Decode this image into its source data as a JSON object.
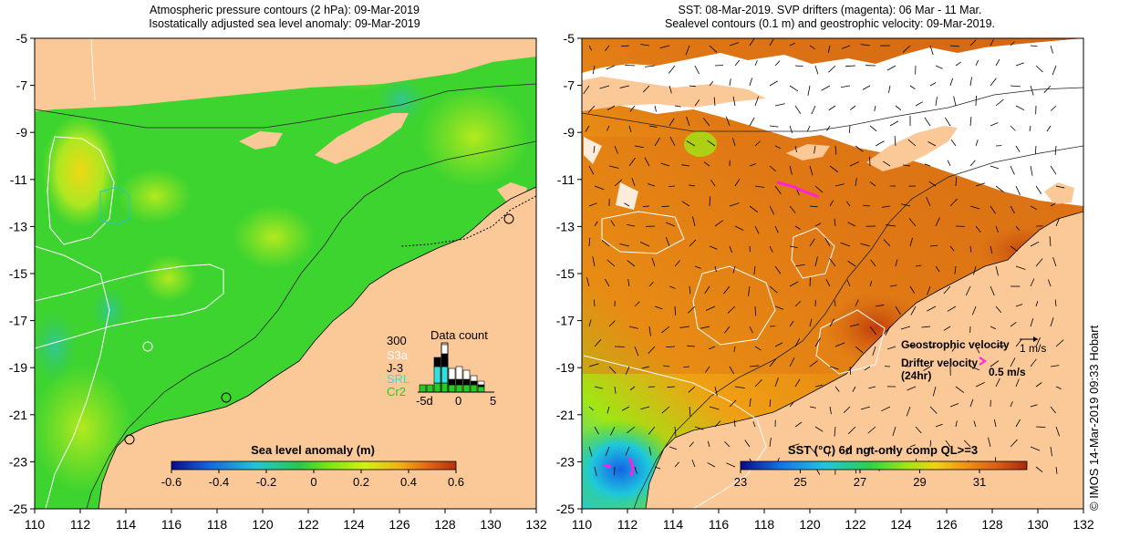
{
  "left_map": {
    "title_line1": "Atmospheric pressure contours (2 hPa): 09-Mar-2019",
    "title_line2": "Isostatically adjusted sea level anomaly: 09-Mar-2019",
    "colorbar_title": "Sea level anomaly (m)",
    "colorbar_ticks": [
      "-0.6",
      "-0.4",
      "-0.2",
      "0",
      "0.2",
      "0.4",
      "0.6"
    ],
    "data_count": {
      "title": "Data count",
      "max_label": "300",
      "satellites": [
        {
          "name": "S3a",
          "color": "#ffffff"
        },
        {
          "name": "J-3",
          "color": "#000000"
        },
        {
          "name": "SRL",
          "color": "#33e0e0"
        },
        {
          "name": "Cr2",
          "color": "#22cc22"
        }
      ],
      "axis_labels": [
        "-5d",
        "0",
        "5"
      ]
    }
  },
  "right_map": {
    "title_line1": "SST: 08-Mar-2019. SVP drifters (magenta): 06 Mar - 11 Mar.",
    "title_line2": "Sealevel contours (0.1 m) and geostrophic velocity: 09-Mar-2019.",
    "colorbar_title": "SST (°C) 6d ngt-only comp QL>=3",
    "colorbar_ticks": [
      "23",
      "25",
      "27",
      "29",
      "31"
    ],
    "legend": {
      "geostrophic_label": "Geostrophic velocity",
      "geostrophic_scale": "1 m/s",
      "drifter_label": "Drifter velocity",
      "drifter_sub": "(24hr)",
      "drifter_scale": "0.5 m/s"
    },
    "credit": "© IMOS 14-Mar-2019 09:33 Hobart"
  },
  "axes": {
    "x_ticks": [
      "110",
      "112",
      "114",
      "116",
      "118",
      "120",
      "122",
      "124",
      "126",
      "128",
      "130",
      "132"
    ],
    "y_ticks": [
      "-5",
      "-7",
      "-9",
      "-11",
      "-13",
      "-15",
      "-17",
      "-19",
      "-21",
      "-23",
      "-25"
    ]
  },
  "colors": {
    "land": "#fbc898",
    "sla_colormap": [
      "#0a0a8c",
      "#1464e6",
      "#1ec8d2",
      "#28c84a",
      "#78e614",
      "#d2f014",
      "#f0b414",
      "#e66414",
      "#b4320a"
    ],
    "sst_colormap": [
      "#0a0a8c",
      "#1478f0",
      "#1ec8dc",
      "#28d24a",
      "#a0e614",
      "#f0d214",
      "#f09614",
      "#dc5a14",
      "#aa2a0a"
    ],
    "drifter": "#ff22dd"
  }
}
